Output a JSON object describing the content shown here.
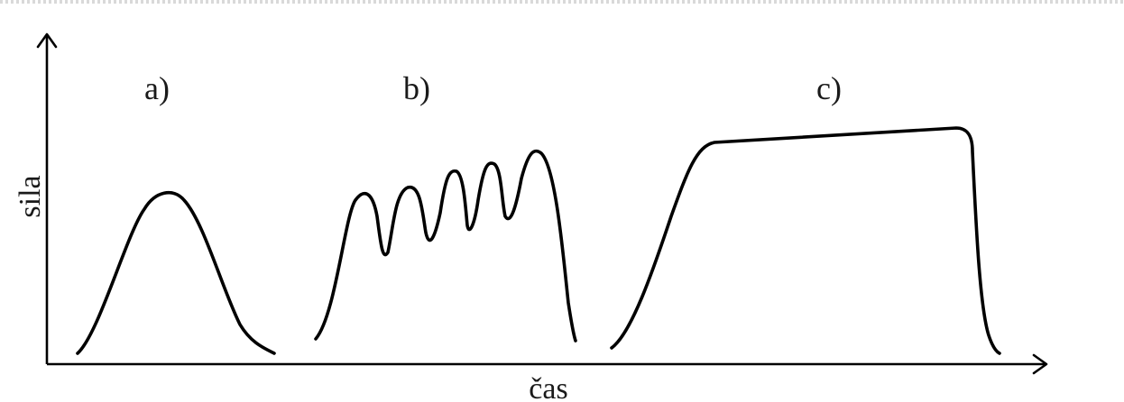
{
  "diagram": {
    "y_axis_label": "sila",
    "x_axis_label": "čas",
    "panels": [
      {
        "label": "a)"
      },
      {
        "label": "b)"
      },
      {
        "label": "c)"
      }
    ]
  },
  "colors": {
    "stroke": "#000000",
    "text": "#1a1a1a",
    "background": "#ffffff"
  }
}
